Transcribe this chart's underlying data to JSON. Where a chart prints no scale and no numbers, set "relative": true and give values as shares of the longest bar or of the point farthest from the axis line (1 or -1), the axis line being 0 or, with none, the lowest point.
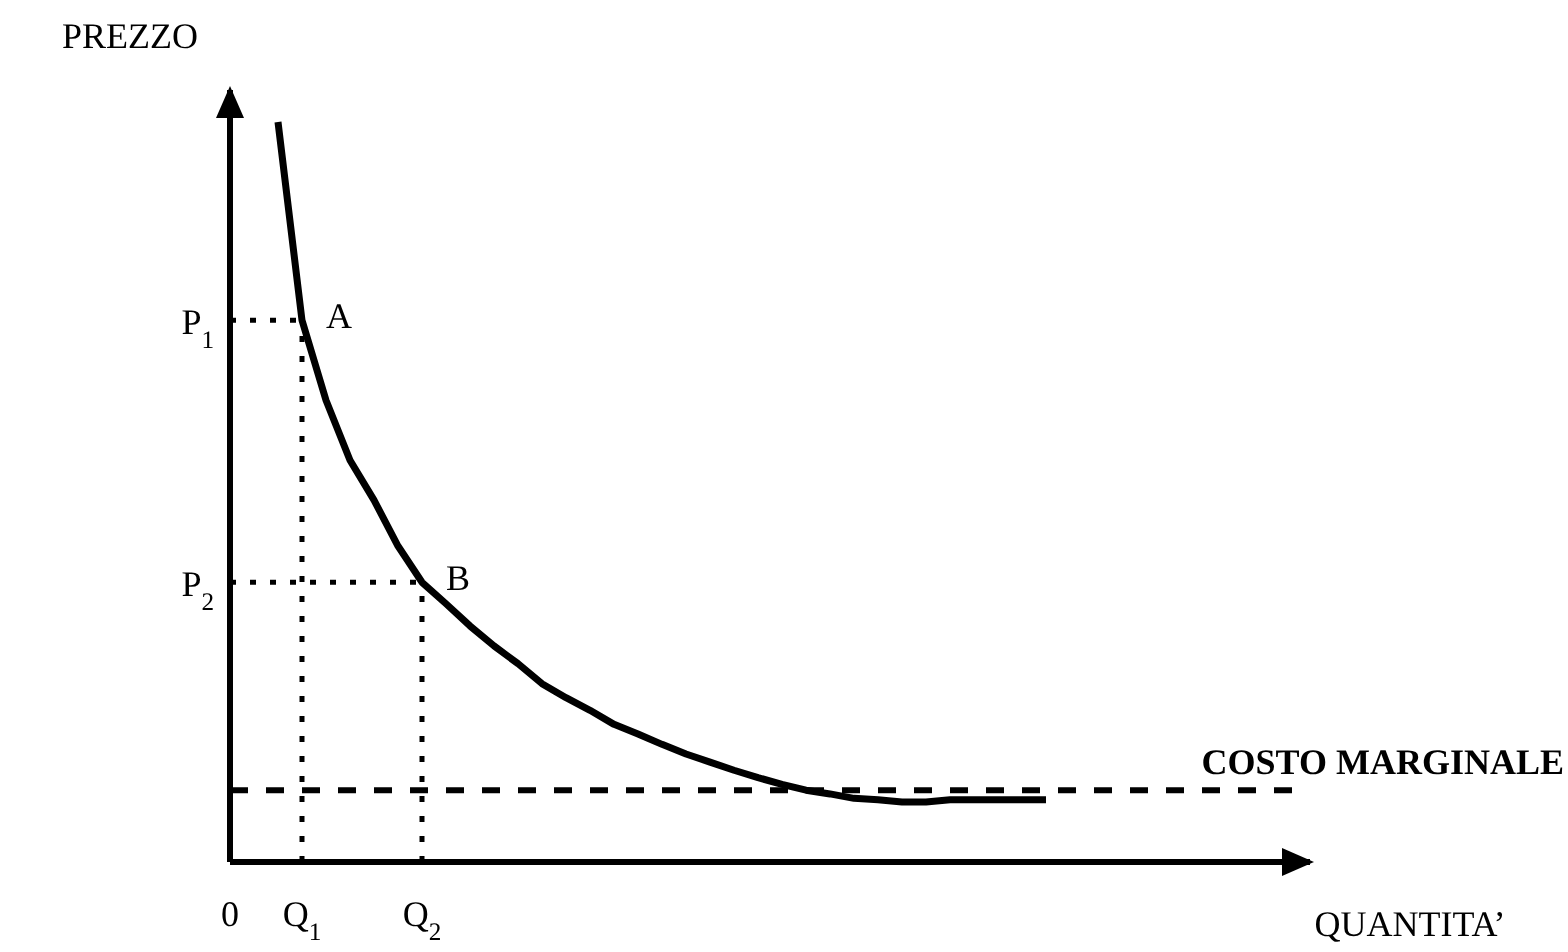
{
  "chart_data": {
    "type": "line",
    "relative": true,
    "ylabel": "PREZZO",
    "xlabel": "QUANTITA’",
    "categories": [
      "0",
      null,
      null,
      "Q$_{1}$",
      null,
      null,
      null,
      null,
      "Q$_{2}$",
      null,
      null,
      null,
      null,
      null,
      null,
      null,
      null,
      null,
      null,
      null,
      null,
      null,
      null,
      null,
      null,
      null,
      null,
      null,
      null,
      null,
      null,
      null,
      null,
      null,
      null,
      null,
      null,
      null,
      null,
      null,
      null,
      null,
      null,
      null,
      null,
      null
    ],
    "series": [
      {
        "color": "#000000",
        "line_style": "solid",
        "values": [
          null,
          null,
          1.0,
          0.732,
          0.624,
          0.543,
          0.489,
          0.427,
          0.378,
          0.349,
          0.319,
          0.292,
          0.268,
          0.241,
          0.222,
          0.205,
          0.186,
          0.173,
          0.159,
          0.146,
          0.135,
          0.124,
          0.114,
          0.105,
          0.097,
          0.092,
          0.086,
          0.084,
          0.081,
          0.081,
          0.084,
          0.084,
          0.084,
          0.084,
          0.084,
          null,
          null,
          null,
          null,
          null,
          null,
          null,
          null,
          null,
          null,
          null
        ]
      },
      {
        "name": "P$_{1}$",
        "color": "#000000",
        "line_style": "dotted",
        "values": [
          0.732,
          0.732,
          0.732,
          0.732,
          null,
          null,
          null,
          null,
          null,
          null,
          null,
          null,
          null,
          null,
          null,
          null,
          null,
          null,
          null,
          null,
          null,
          null,
          null,
          null,
          null,
          null,
          null,
          null,
          null,
          null,
          null,
          null,
          null,
          null,
          null,
          null,
          null,
          null,
          null,
          null,
          null,
          null,
          null,
          null,
          null,
          null
        ]
      },
      {
        "name": "P$_{2}$",
        "color": "#000000",
        "line_style": "dotted",
        "values": [
          0.378,
          0.378,
          0.378,
          0.378,
          0.378,
          0.378,
          0.378,
          0.378,
          0.378,
          null,
          null,
          null,
          null,
          null,
          null,
          null,
          null,
          null,
          null,
          null,
          null,
          null,
          null,
          null,
          null,
          null,
          null,
          null,
          null,
          null,
          null,
          null,
          null,
          null,
          null,
          null,
          null,
          null,
          null,
          null,
          null,
          null,
          null,
          null,
          null,
          null
        ]
      }
    ],
    "ref_lines": [
      {
        "axis": "y",
        "value": 0.097,
        "label": "COSTO MARGINALE",
        "color": "#000000",
        "line_style": "dashed"
      }
    ],
    "annotations": [
      {
        "text": "A",
        "x": "Q$_{1}$",
        "y": 0.732
      },
      {
        "text": "B",
        "x": "Q$_{2}$",
        "y": 0.378
      }
    ]
  }
}
